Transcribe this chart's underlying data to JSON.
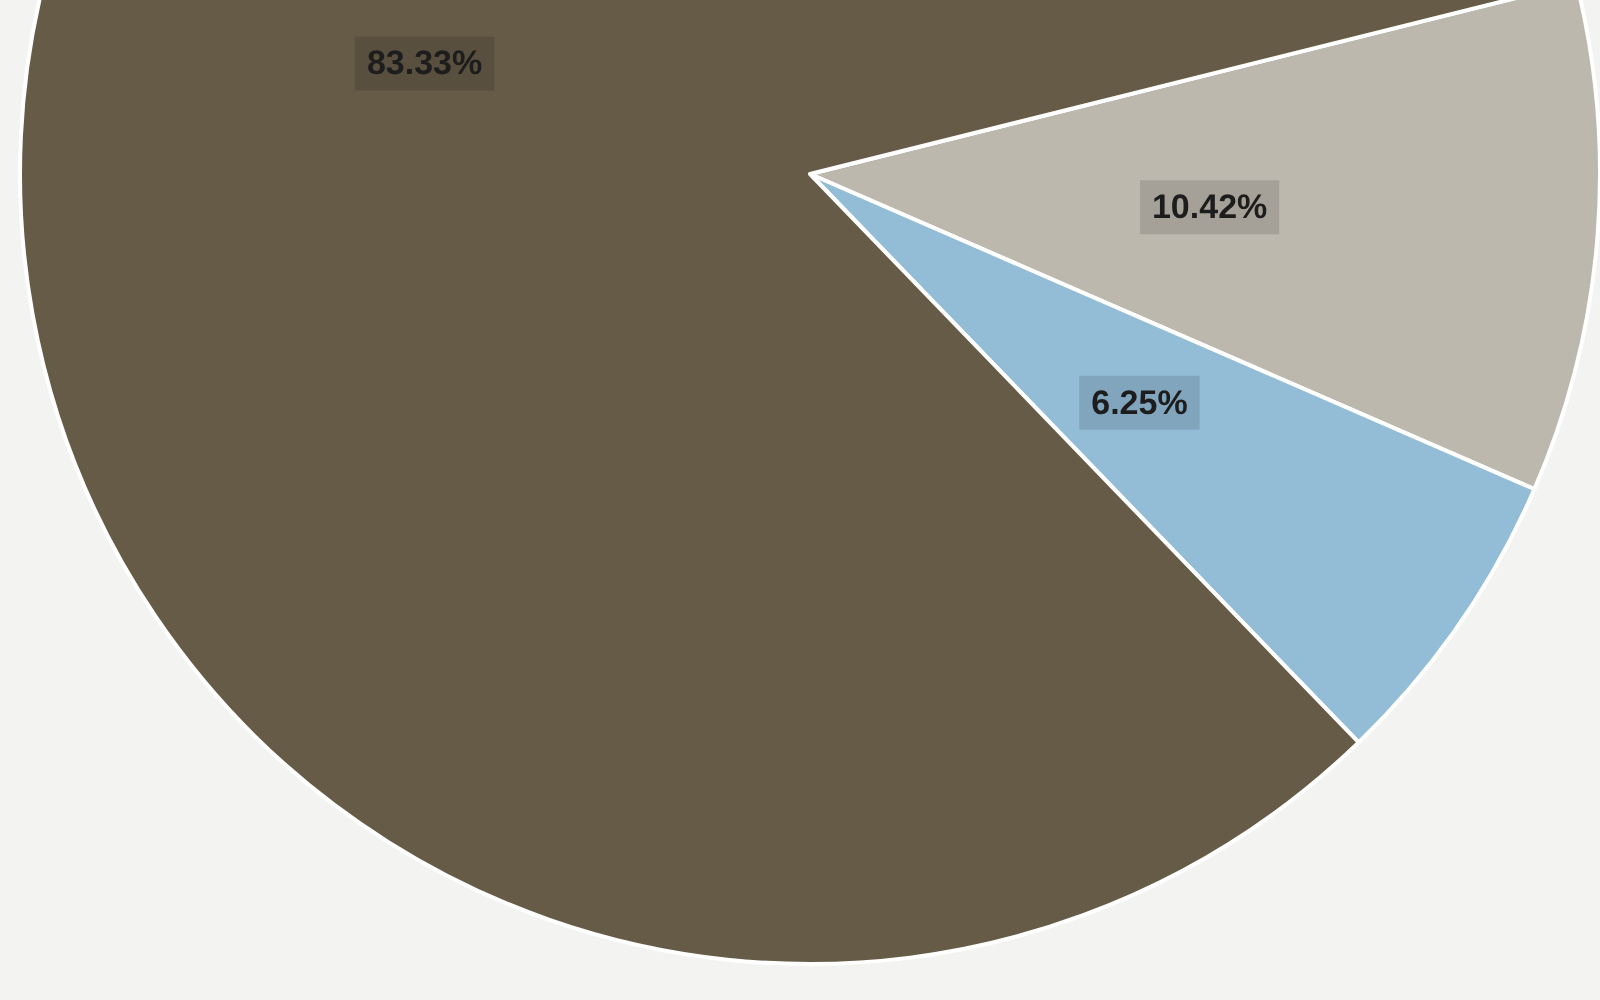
{
  "chart_data": {
    "type": "pie",
    "categories": [
      null,
      null,
      null
    ],
    "values": [
      10.42,
      6.25,
      83.33
    ],
    "value_labels": [
      "10.42%",
      "6.25%",
      "83.33%"
    ],
    "colors": [
      "#bdb8ae",
      "#93bcd6",
      "#655b47"
    ]
  }
}
